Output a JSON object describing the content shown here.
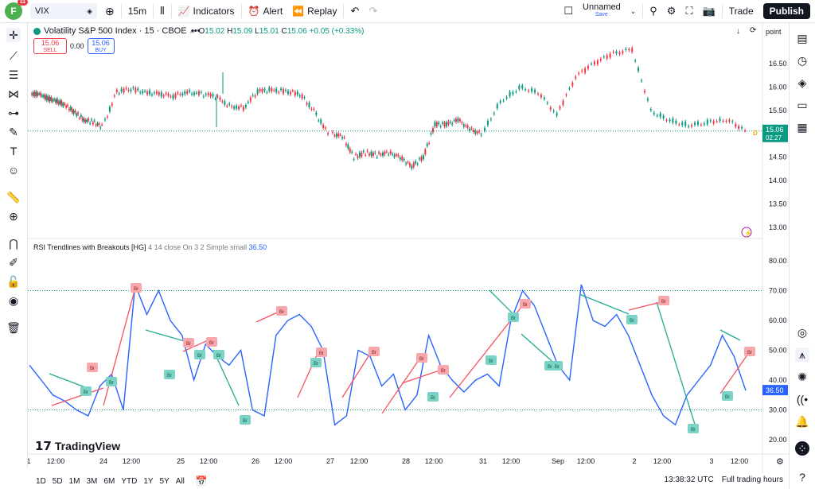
{
  "topbar": {
    "avatar_letter": "F",
    "avatar_badge": "11",
    "symbol": "VIX",
    "interval": "15m",
    "indicators": "Indicators",
    "alert": "Alert",
    "replay": "Replay",
    "layout_name": "Unnamed",
    "layout_status": "Save",
    "trade": "Trade",
    "publish": "Publish"
  },
  "legend": {
    "title": "Volatility S&P 500 Index · 15 · CBOE",
    "open_label": "O",
    "open": "15.02",
    "high_label": "H",
    "high": "15.09",
    "low_label": "L",
    "low": "15.01",
    "close_label": "C",
    "close": "15.06",
    "change": "+0.05 (+0.33%)",
    "sell_price": "15.06",
    "sell_label": "SELL",
    "spread": "0.00",
    "buy_price": "15.06",
    "buy_label": "BUY",
    "price_axis_mode": "point"
  },
  "rsi_legend": {
    "name": "RSI Trendlines with Breakouts [HG]",
    "params": "4 14 close On 3 2 Simple small",
    "value": "36.50"
  },
  "price_axis": [
    "16.50",
    "16.00",
    "15.50",
    "15.00",
    "14.50",
    "14.00",
    "13.50",
    "13.00"
  ],
  "rsi_axis": [
    "80.00",
    "70.00",
    "60.00",
    "50.00",
    "40.00",
    "30.00",
    "20.00"
  ],
  "price_tag": {
    "value": "15.06",
    "countdown": "02:27"
  },
  "rsi_tag": "36.50",
  "time_axis": [
    {
      "t": "1",
      "x": 36
    },
    {
      "t": "12:00",
      "x": 70
    },
    {
      "t": "24",
      "x": 130
    },
    {
      "t": "12:00",
      "x": 165
    },
    {
      "t": "25",
      "x": 227
    },
    {
      "t": "12:00",
      "x": 262
    },
    {
      "t": "26",
      "x": 321
    },
    {
      "t": "12:00",
      "x": 356
    },
    {
      "t": "27",
      "x": 415
    },
    {
      "t": "12:00",
      "x": 451
    },
    {
      "t": "28",
      "x": 510
    },
    {
      "t": "12:00",
      "x": 545
    },
    {
      "t": "31",
      "x": 607
    },
    {
      "t": "12:00",
      "x": 642
    },
    {
      "t": "Sep",
      "x": 701
    },
    {
      "t": "12:00",
      "x": 736
    },
    {
      "t": "2",
      "x": 797
    },
    {
      "t": "12:00",
      "x": 832
    },
    {
      "t": "3",
      "x": 894
    },
    {
      "t": "12:00",
      "x": 929
    }
  ],
  "bottom": {
    "timeframes": [
      "1D",
      "5D",
      "1M",
      "3M",
      "6M",
      "YTD",
      "1Y",
      "5Y",
      "All"
    ],
    "clock": "13:38:32 UTC",
    "session": "Full trading hours"
  },
  "brand": "TradingView",
  "badge_br": "Br",
  "colors": {
    "up": "#089981",
    "down": "#f23645",
    "rsi": "#2962ff",
    "green_line": "#22ab94",
    "red_line": "#f7525f"
  },
  "chart_data": {
    "type": "line",
    "price_series_close": [
      15.85,
      15.75,
      15.7,
      15.6,
      15.45,
      15.3,
      15.25,
      15.15,
      15.9,
      15.95,
      15.9,
      15.85,
      15.8,
      15.9,
      15.85,
      15.8,
      15.6,
      15.55,
      15.9,
      15.95,
      15.9,
      15.85,
      15.5,
      15.0,
      14.95,
      14.5,
      14.6,
      14.55,
      14.6,
      14.5,
      14.3,
      14.5,
      15.2,
      15.2,
      15.3,
      15.1,
      15.0,
      15.7,
      16.0,
      15.9,
      15.4,
      16.2,
      16.5,
      16.7,
      16.8,
      15.5,
      15.3,
      15.2,
      15.25,
      15.3,
      15.06
    ],
    "rsi_series": [
      45,
      40,
      35,
      33,
      30,
      28,
      38,
      42,
      30,
      72,
      62,
      70,
      60,
      55,
      40,
      52,
      48,
      45,
      50,
      30,
      28,
      55,
      60,
      62,
      58,
      50,
      25,
      28,
      50,
      48,
      38,
      42,
      30,
      35,
      55,
      45,
      40,
      36,
      40,
      42,
      38,
      60,
      70,
      65,
      55,
      45,
      40,
      72,
      60,
      58,
      62,
      55,
      45,
      35,
      28,
      25,
      35,
      40,
      45,
      55,
      48,
      36.5
    ]
  }
}
